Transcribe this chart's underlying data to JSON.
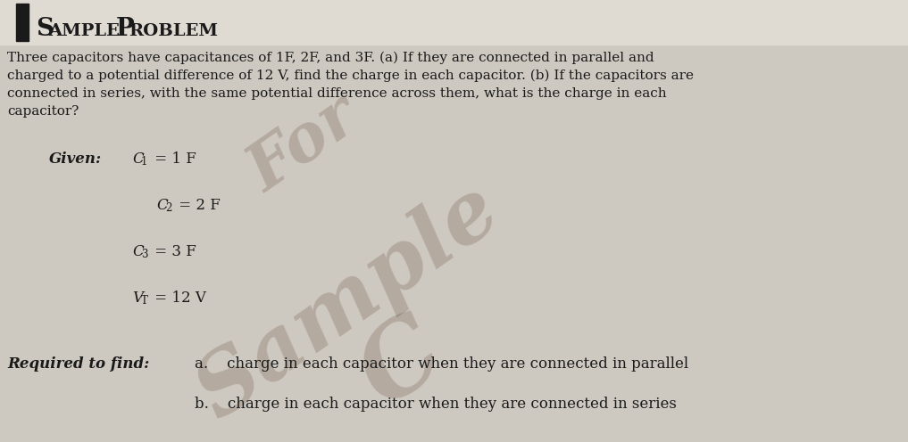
{
  "background_color": "#cdc9c0",
  "header_bg_color": "#e8e4dc",
  "header_bar_color": "#1a1a1a",
  "text_color": "#1a1a1a",
  "title_large": "S",
  "title_small1": "AMPLE ",
  "title_large2": "P",
  "title_small2": "ROBLEM",
  "body_lines": [
    "Three capacitors have capacitances of 1F, 2F, and 3F. (a) If they are connected in parallel and",
    "charged to a potential difference of 12 V, find the charge in each capacitor. (b) If the capacitors are",
    "connected in series, with the same potential difference across them, what is the charge in each",
    "capacitor?"
  ],
  "given_label": "Given:",
  "given_items": [
    [
      "C",
      "1",
      " = 1 F"
    ],
    [
      "C",
      "2",
      " = 2 F"
    ],
    [
      "C",
      "3",
      " = 3 F"
    ],
    [
      "V",
      "T",
      " = 12 V"
    ]
  ],
  "required_label": "Required to find:",
  "required_a": "a.    charge in each capacitor when they are connected in parallel",
  "required_b": "b.    charge in each capacitor when they are connected in series",
  "watermark_for_color": "#5a3a2a",
  "watermark_sample_color": "#5a3a2a",
  "watermark_c_color": "#5a3a2a",
  "watermark_alpha": 0.22
}
